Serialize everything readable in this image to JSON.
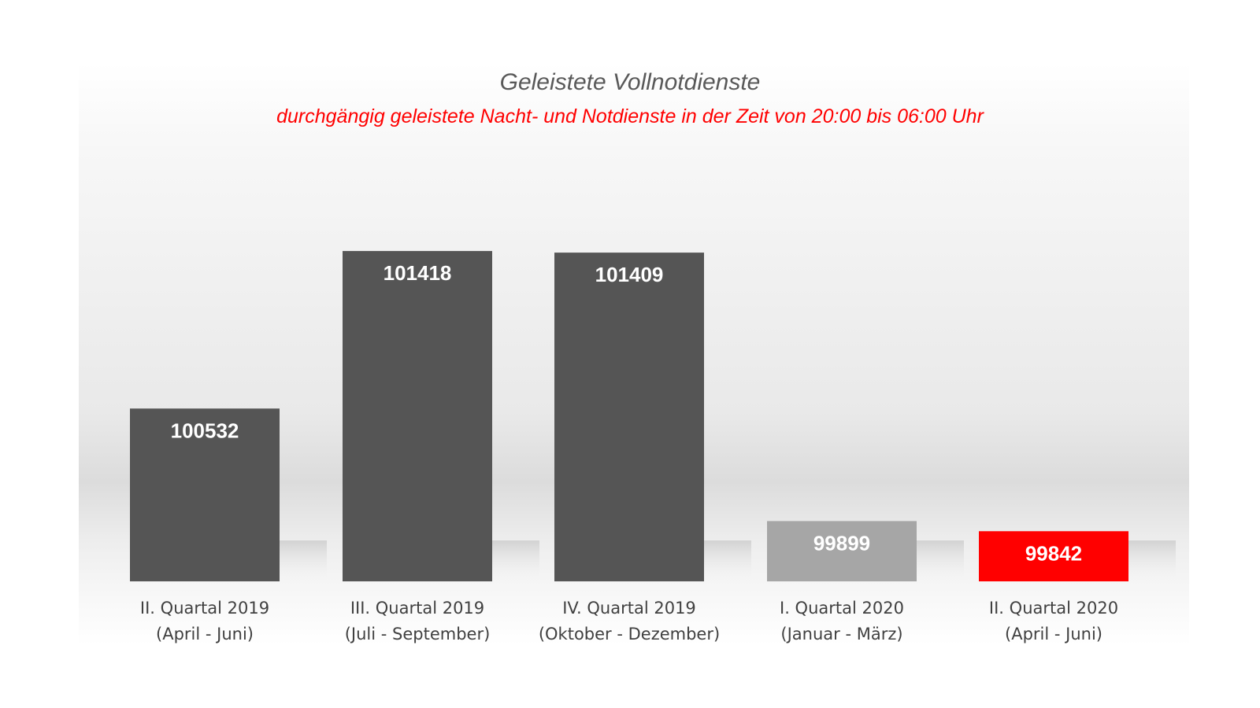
{
  "chart_data": {
    "type": "bar",
    "title": "Geleistete Vollnotdienste",
    "subtitle": "durchgängig geleistete Nacht- und Notdienste in der Zeit von 20:00 bis 06:00 Uhr",
    "categories": [
      [
        "II. Quartal 2019",
        "(April - Juni)"
      ],
      [
        "III. Quartal 2019",
        "(Juli - September)"
      ],
      [
        "IV. Quartal 2019",
        "(Oktober - Dezember)"
      ],
      [
        "I. Quartal 2020",
        "(Januar - März)"
      ],
      [
        "II. Quartal 2020",
        "(April - Juni)"
      ]
    ],
    "values": [
      100532,
      101418,
      101409,
      99899,
      99842
    ],
    "value_labels": [
      "100532",
      "101418",
      "101409",
      "99899",
      "99842"
    ],
    "bar_colors": [
      "#555555",
      "#555555",
      "#555555",
      "#a6a6a6",
      "#ff0000"
    ],
    "ylim": [
      99560,
      101560
    ],
    "grid": false,
    "legend": "none"
  },
  "colors": {
    "title": "#595959",
    "subtitle": "#ff0000",
    "axis_text": "#404040"
  }
}
